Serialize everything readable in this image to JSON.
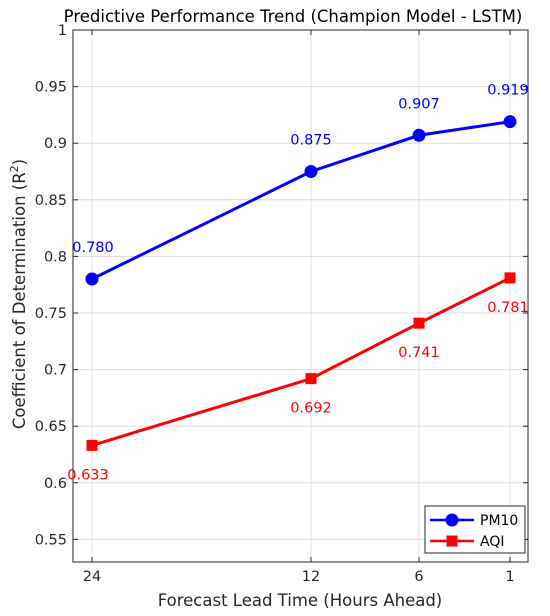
{
  "chart_data": {
    "type": "line",
    "title": "Predictive Performance Trend (Champion Model - LSTM)",
    "xlabel": "Forecast Lead Time (Hours Ahead)",
    "ylabel_main": "Coefficient of Determination (R",
    "ylabel_sup": "2",
    "ylabel_close": ")",
    "categories": [
      "24",
      "12",
      "6",
      "1"
    ],
    "x": [
      24,
      12,
      6,
      1
    ],
    "x_scale": "log-reversed",
    "ylim": [
      0.53,
      1.0
    ],
    "yticks": [
      0.55,
      0.6,
      0.65,
      0.7,
      0.75,
      0.8,
      0.85,
      0.9,
      0.95,
      1
    ],
    "ytick_labels": [
      "0.55",
      "0.6",
      "0.65",
      "0.7",
      "0.75",
      "0.8",
      "0.85",
      "0.9",
      "0.95",
      "1"
    ],
    "grid": true,
    "legend_position": "bottom-right",
    "series": [
      {
        "name": "PM10",
        "color": "#0000ff",
        "marker": "circle",
        "values": [
          0.78,
          0.875,
          0.907,
          0.919
        ],
        "labels": [
          "0.780",
          "0.875",
          "0.907",
          "0.919"
        ],
        "label_position": "above"
      },
      {
        "name": "AQI",
        "color": "#ff0000",
        "marker": "square",
        "values": [
          0.633,
          0.692,
          0.741,
          0.781
        ],
        "labels": [
          "0.633",
          "0.692",
          "0.741",
          "0.781"
        ],
        "label_position": "below"
      }
    ]
  }
}
